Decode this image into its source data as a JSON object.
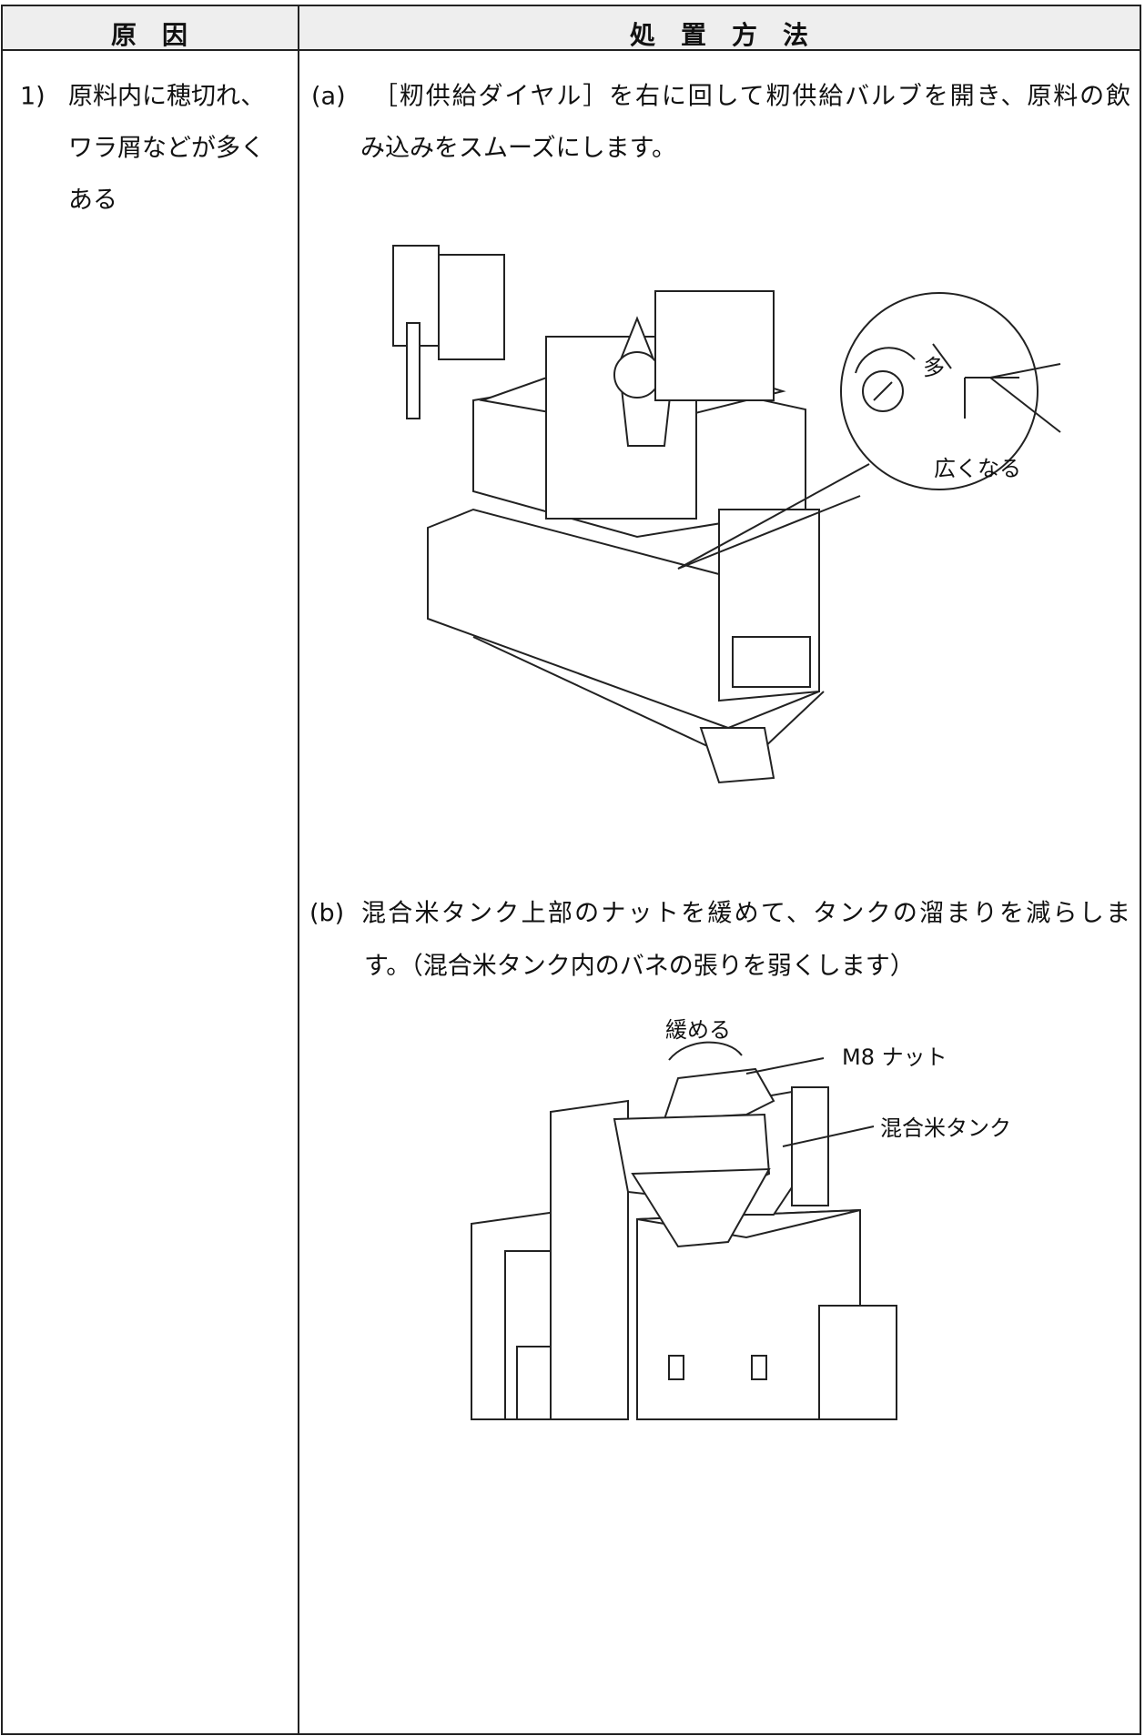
{
  "table": {
    "headers": [
      "原　因",
      "処　置　方　法"
    ],
    "rows": [
      {
        "cause": {
          "number": "1)",
          "lines": [
            "原料内に穂切れ、",
            "ワラ屑などが多く",
            "ある"
          ]
        },
        "actions": [
          {
            "label": "(a)",
            "lines": [
              "［籾供給ダイヤル］を右に回して籾供給バルブを開き、原料の飲",
              "み込みをスムーズにします。"
            ],
            "figure_labels": [
              "多",
              "広くなる"
            ]
          },
          {
            "label": "(b)",
            "lines": [
              "混合米タンク上部のナットを緩めて、タンクの溜まりを減らしま",
              "す。（混合米タンク内のバネの張りを弱くします）"
            ],
            "figure_labels": [
              "緩める",
              "M8 ナット",
              "混合米タンク"
            ]
          }
        ]
      }
    ]
  }
}
